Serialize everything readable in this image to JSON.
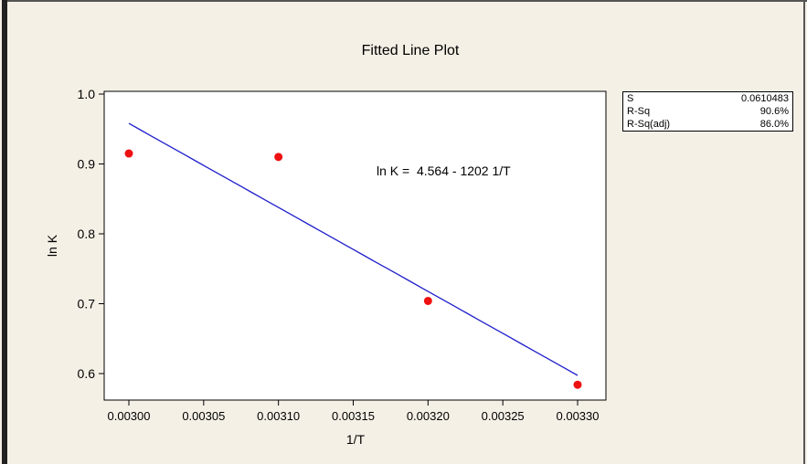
{
  "chart_data": {
    "type": "scatter",
    "title": "Fitted Line Plot",
    "xlabel": "1/T",
    "ylabel": "ln K",
    "equation": "ln K =  4.564 - 1202 1/T",
    "xlim": [
      0.003,
      0.0033
    ],
    "ylim": [
      0.6,
      1.0
    ],
    "x_ticks": [
      "0.00300",
      "0.00305",
      "0.00310",
      "0.00315",
      "0.00320",
      "0.00325",
      "0.00330"
    ],
    "y_ticks": [
      "0.6",
      "0.7",
      "0.8",
      "0.9",
      "1.0"
    ],
    "points": [
      {
        "x": 0.003,
        "y": 0.915
      },
      {
        "x": 0.0031,
        "y": 0.91
      },
      {
        "x": 0.0032,
        "y": 0.704
      },
      {
        "x": 0.0033,
        "y": 0.584
      }
    ],
    "fit": {
      "intercept": 4.564,
      "slope": -1202,
      "x_range": [
        0.003,
        0.0033
      ]
    },
    "colors": {
      "points": "#ee1111",
      "line": "#1f1fcc",
      "background": "#f5f0e6",
      "plot_background": "#ffffff"
    },
    "stats": [
      {
        "label": "S",
        "value": "0.0610483"
      },
      {
        "label": "R-Sq",
        "value": "90.6%"
      },
      {
        "label": "R-Sq(adj)",
        "value": "86.0%"
      }
    ],
    "grid": false,
    "legend": "none"
  }
}
